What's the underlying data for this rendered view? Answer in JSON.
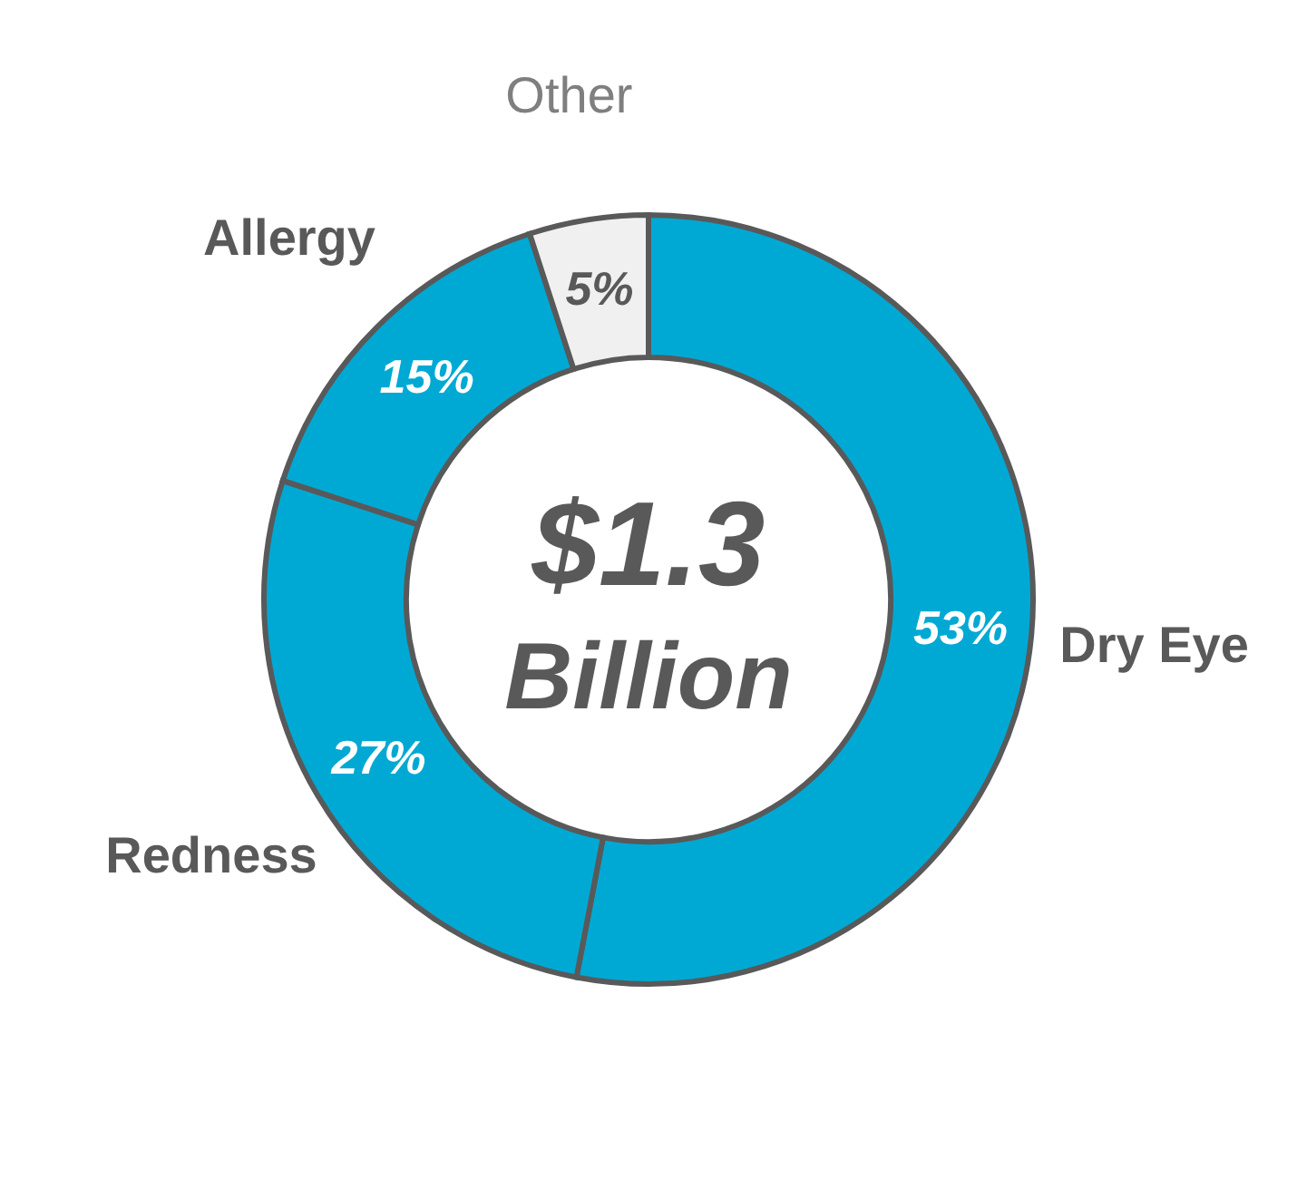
{
  "chart_data": {
    "type": "donut",
    "categories": [
      "Dry Eye",
      "Redness",
      "Allergy",
      "Other"
    ],
    "values": [
      53,
      27,
      15,
      5
    ],
    "colors": [
      "#00a9d4",
      "#00a9d4",
      "#00a9d4",
      "#f0f0f0"
    ],
    "value_labels": [
      "53%",
      "27%",
      "15%",
      "5%"
    ],
    "annotations": [
      "$1.3",
      "Billion"
    ]
  }
}
